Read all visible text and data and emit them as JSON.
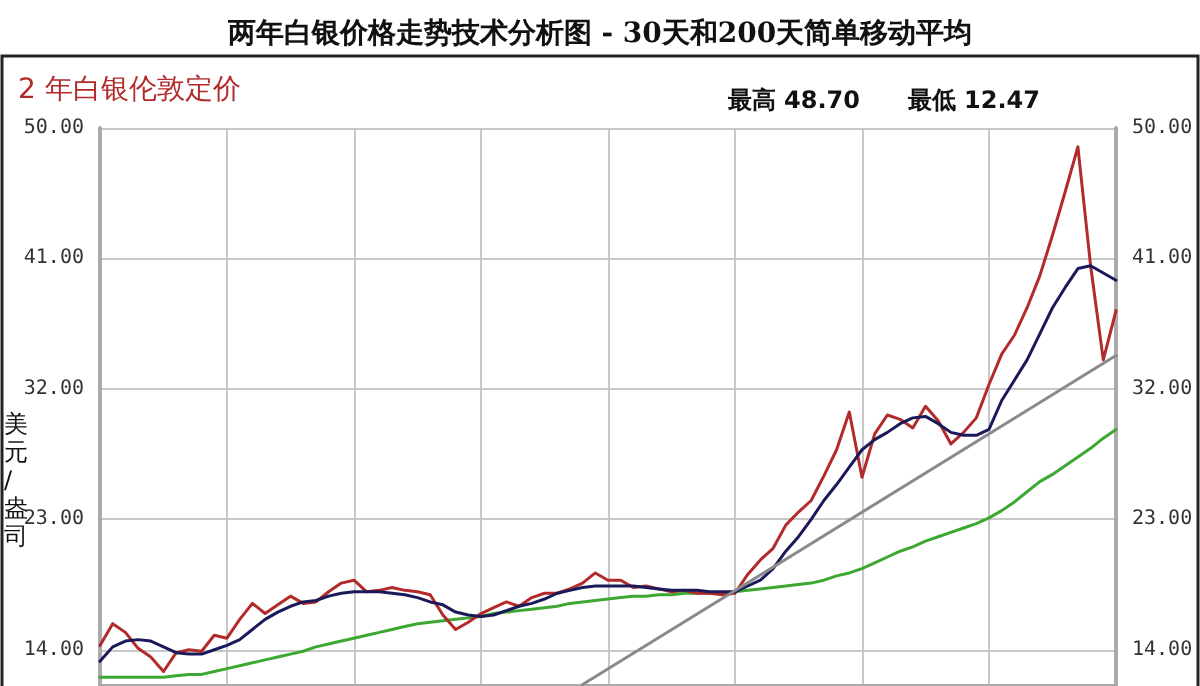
{
  "chart_data": {
    "type": "line",
    "title": "两年白银价格走势技术分析图 - 30天和200天简单移动平均",
    "subtitle": "2 年白银伦敦定价",
    "ylabel": "美元/盎司",
    "annotations": [
      "最高 48.70",
      "最低 12.47"
    ],
    "categories": [
      null,
      null,
      null,
      null,
      null,
      null,
      null,
      null,
      null,
      null,
      null,
      null,
      null,
      null,
      null,
      null,
      null,
      null,
      null,
      null,
      null,
      null,
      null,
      null,
      null,
      null,
      null,
      null,
      null,
      null,
      null,
      null,
      null,
      null,
      null,
      null,
      null,
      null,
      null,
      null,
      null,
      null,
      null,
      null,
      null,
      null,
      null,
      null,
      null,
      null,
      null,
      null,
      null,
      null,
      null,
      null,
      null,
      null,
      null,
      null,
      null,
      null,
      null,
      null,
      null,
      null,
      null,
      null,
      null,
      null,
      null,
      null,
      null,
      null,
      null,
      null,
      null,
      null,
      null,
      null,
      null
    ],
    "ylim": [
      11.5,
      50
    ],
    "yticks": [
      {
        "value": 14,
        "label": "14.00"
      },
      {
        "value": 23,
        "label": "23.00"
      },
      {
        "value": 32,
        "label": "32.00"
      },
      {
        "value": 41,
        "label": "41.00"
      },
      {
        "value": 50,
        "label": "50.00"
      }
    ],
    "y2lim": [
      11.5,
      50
    ],
    "y2ticks": [
      {
        "value": 14,
        "label": "14.00"
      },
      {
        "value": 23,
        "label": "23.00"
      },
      {
        "value": 32,
        "label": "32.00"
      },
      {
        "value": 41,
        "label": "41.00"
      },
      {
        "value": 50,
        "label": "50.00"
      }
    ],
    "grid": true,
    "line_style": "solid",
    "tick_labels": "y",
    "series": [
      {
        "color": "#3ca832",
        "values": [
          12.1,
          12.1,
          12.1,
          12.1,
          12.1,
          12.1,
          12.2,
          12.3,
          12.3,
          12.5,
          12.7,
          12.9,
          13.1,
          13.3,
          13.5,
          13.7,
          13.9,
          14.2,
          14.4,
          14.6,
          14.8,
          15.0,
          15.2,
          15.4,
          15.6,
          15.8,
          15.9,
          16.0,
          16.1,
          16.2,
          16.3,
          16.5,
          16.6,
          16.7,
          16.8,
          16.9,
          17.0,
          17.2,
          17.3,
          17.4,
          17.5,
          17.6,
          17.7,
          17.7,
          17.8,
          17.8,
          17.9,
          17.9,
          17.9,
          17.9,
          18.0,
          18.1,
          18.2,
          18.3,
          18.4,
          18.5,
          18.6,
          18.8,
          19.1,
          19.3,
          19.6,
          20.0,
          20.4,
          20.8,
          21.1,
          21.5,
          21.8,
          22.1,
          22.4,
          22.7,
          23.1,
          23.6,
          24.2,
          24.9,
          25.6,
          26.1,
          26.7,
          27.3,
          27.9,
          28.6,
          29.2
        ]
      },
      {
        "color": "#b22a2a",
        "values": [
          14.3,
          15.8,
          15.2,
          14.1,
          13.5,
          12.5,
          13.8,
          14.0,
          13.9,
          15.0,
          14.8,
          16.1,
          17.2,
          16.5,
          17.1,
          17.7,
          17.2,
          17.3,
          18.0,
          18.6,
          18.8,
          18.0,
          18.1,
          18.3,
          18.1,
          18.0,
          17.8,
          16.4,
          15.4,
          15.9,
          16.5,
          16.9,
          17.3,
          17.0,
          17.6,
          17.9,
          17.9,
          18.2,
          18.6,
          19.3,
          18.8,
          18.8,
          18.3,
          18.4,
          18.2,
          18.0,
          18.1,
          17.9,
          17.9,
          17.8,
          17.9,
          19.2,
          20.2,
          21.0,
          22.6,
          23.5,
          24.3,
          26.0,
          27.8,
          30.4,
          25.9,
          28.9,
          30.2,
          29.9,
          29.3,
          30.8,
          29.8,
          28.2,
          29.0,
          30.0,
          32.3,
          34.4,
          35.7,
          37.6,
          39.8,
          42.6,
          45.6,
          48.7,
          40.5,
          34.0,
          37.4
        ]
      },
      {
        "color": "#1a1a5a",
        "values": [
          13.2,
          14.2,
          14.6,
          14.7,
          14.6,
          14.2,
          13.8,
          13.7,
          13.7,
          14.0,
          14.3,
          14.7,
          15.4,
          16.1,
          16.6,
          17.0,
          17.3,
          17.4,
          17.7,
          17.9,
          18.0,
          18.0,
          18.0,
          17.9,
          17.8,
          17.6,
          17.3,
          17.1,
          16.6,
          16.4,
          16.3,
          16.4,
          16.7,
          17.0,
          17.2,
          17.5,
          17.9,
          18.1,
          18.3,
          18.4,
          18.4,
          18.4,
          18.4,
          18.3,
          18.2,
          18.1,
          18.1,
          18.1,
          18.0,
          18.0,
          18.0,
          18.4,
          18.8,
          19.6,
          20.8,
          21.8,
          23.0,
          24.3,
          25.4,
          26.6,
          27.8,
          28.5,
          29.0,
          29.6,
          30.0,
          30.1,
          29.6,
          29.0,
          28.8,
          28.8,
          29.2,
          31.2,
          32.6,
          34.0,
          35.8,
          37.6,
          39.0,
          40.3,
          40.5,
          40.0,
          39.5
        ]
      },
      {
        "color": "#8a8a8a",
        "values": [
          null,
          null,
          null,
          null,
          null,
          null,
          null,
          null,
          null,
          null,
          null,
          null,
          null,
          null,
          null,
          null,
          null,
          null,
          null,
          null,
          null,
          null,
          null,
          null,
          null,
          null,
          null,
          null,
          null,
          null,
          null,
          null,
          null,
          null,
          null,
          null,
          null,
          null,
          11.6,
          null,
          null,
          null,
          null,
          null,
          null,
          null,
          null,
          null,
          null,
          null,
          null,
          null,
          null,
          null,
          null,
          null,
          null,
          null,
          null,
          null,
          null,
          null,
          null,
          null,
          null,
          null,
          null,
          null,
          null,
          null,
          null,
          null,
          null,
          null,
          null,
          null,
          null,
          null,
          null,
          null,
          34.3
        ]
      }
    ]
  }
}
